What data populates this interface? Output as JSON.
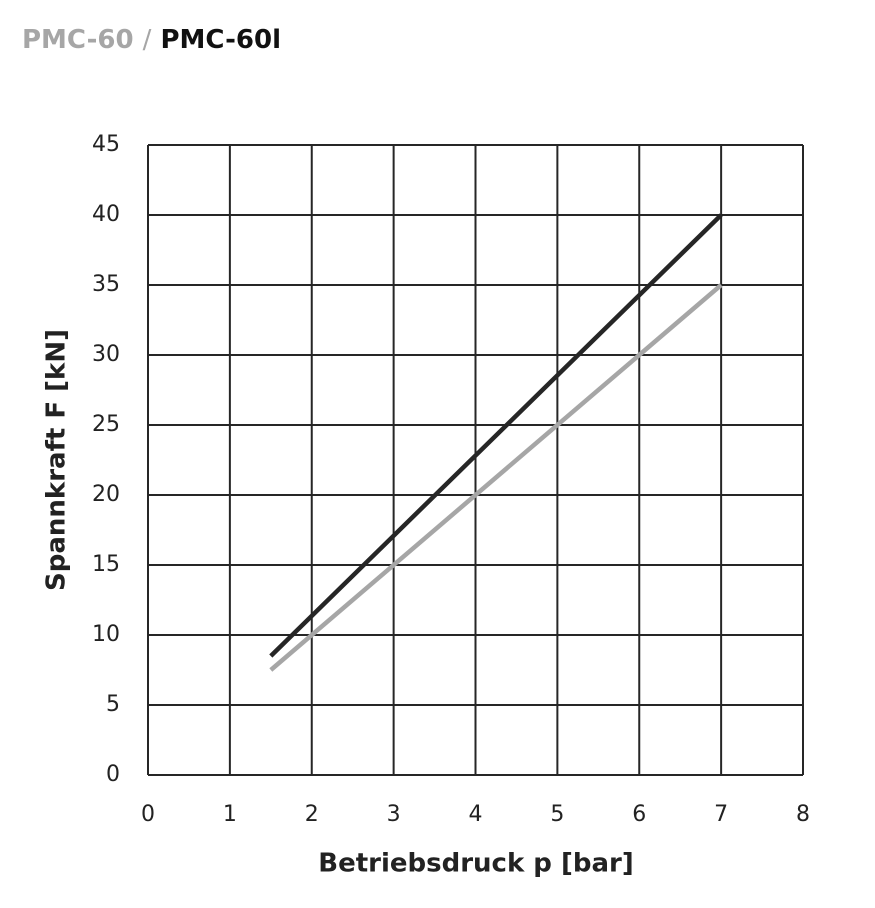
{
  "chart_data": {
    "type": "line",
    "title_separator": "/",
    "x_label": "Betriebsdruck p [bar]",
    "y_label": "Spannkraft F [kN]",
    "x": [
      1.5,
      7
    ],
    "series": [
      {
        "name": "PMC-60",
        "color": "#a6a6a6",
        "values": [
          7.5,
          35
        ]
      },
      {
        "name": "PMC-60l",
        "color": "#262626",
        "values": [
          8.5,
          40
        ]
      }
    ],
    "xlim": [
      0,
      8
    ],
    "xticks": [
      0,
      1,
      2,
      3,
      4,
      5,
      6,
      7,
      8
    ],
    "ylim": [
      0,
      45
    ],
    "yticks": [
      0,
      5,
      10,
      15,
      20,
      25,
      30,
      35,
      40,
      45
    ],
    "grid": true
  }
}
